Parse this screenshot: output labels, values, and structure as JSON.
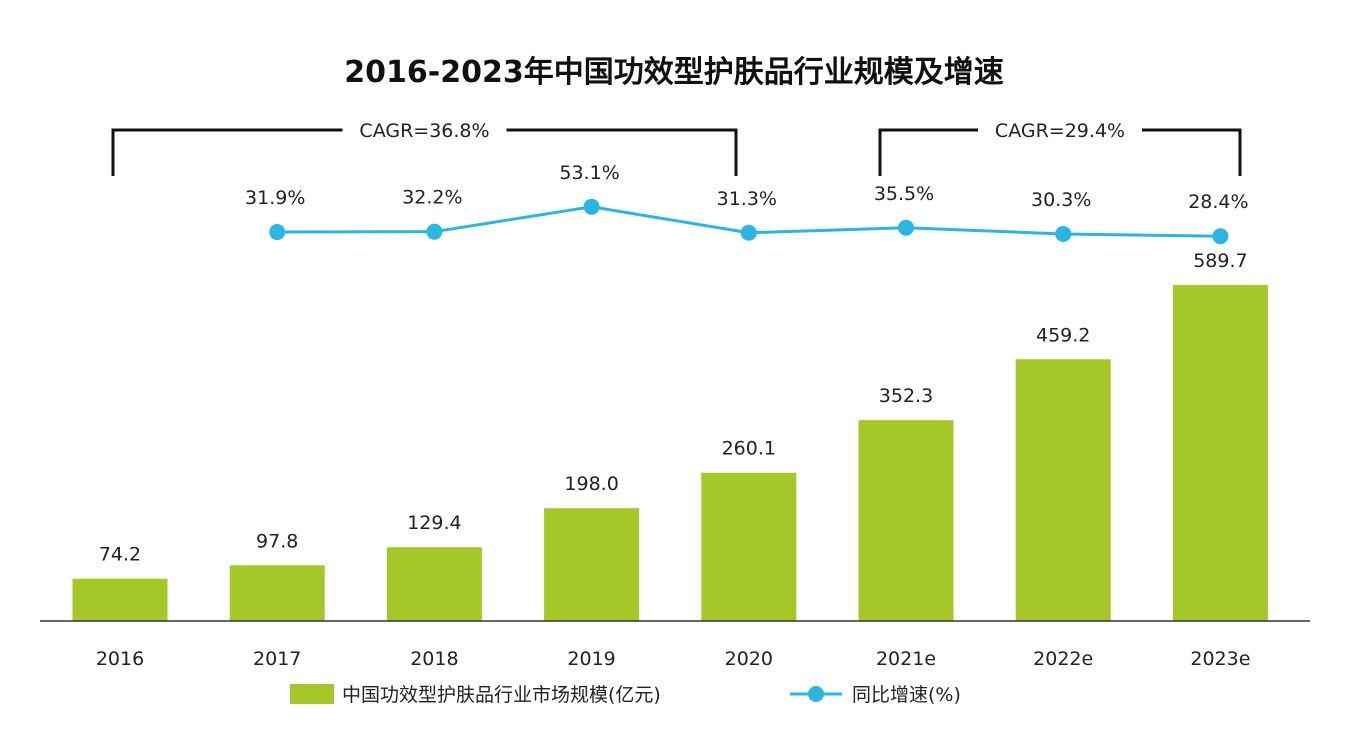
{
  "chart_data": {
    "type": "bar",
    "title": "2016-2023年中国功效型护肤品行业规模及增速",
    "categories": [
      "2016",
      "2017",
      "2018",
      "2019",
      "2020",
      "2021e",
      "2022e",
      "2023e"
    ],
    "series": [
      {
        "name": "中国功效型护肤品行业市场规模(亿元)",
        "type": "bar",
        "color": "#a5c829",
        "values": [
          74.2,
          97.8,
          129.4,
          198.0,
          260.1,
          352.3,
          459.2,
          589.7
        ],
        "labels": [
          "74.2",
          "97.8",
          "129.4",
          "198.0",
          "260.1",
          "352.3",
          "459.2",
          "589.7"
        ]
      },
      {
        "name": "同比增速(%)",
        "type": "line",
        "color": "#2bb5e3",
        "values": [
          null,
          31.9,
          32.2,
          53.1,
          31.3,
          35.5,
          30.3,
          28.4
        ],
        "labels": [
          "",
          "31.9%",
          "32.2%",
          "53.1%",
          "31.3%",
          "35.5%",
          "30.3%",
          "28.4%"
        ]
      }
    ],
    "annotations": [
      {
        "text": "CAGR=36.8%",
        "from": "2016",
        "to": "2020"
      },
      {
        "text": "CAGR=29.4%",
        "from": "2021e",
        "to": "2023e"
      }
    ],
    "legend": "bottom",
    "grid": false
  }
}
